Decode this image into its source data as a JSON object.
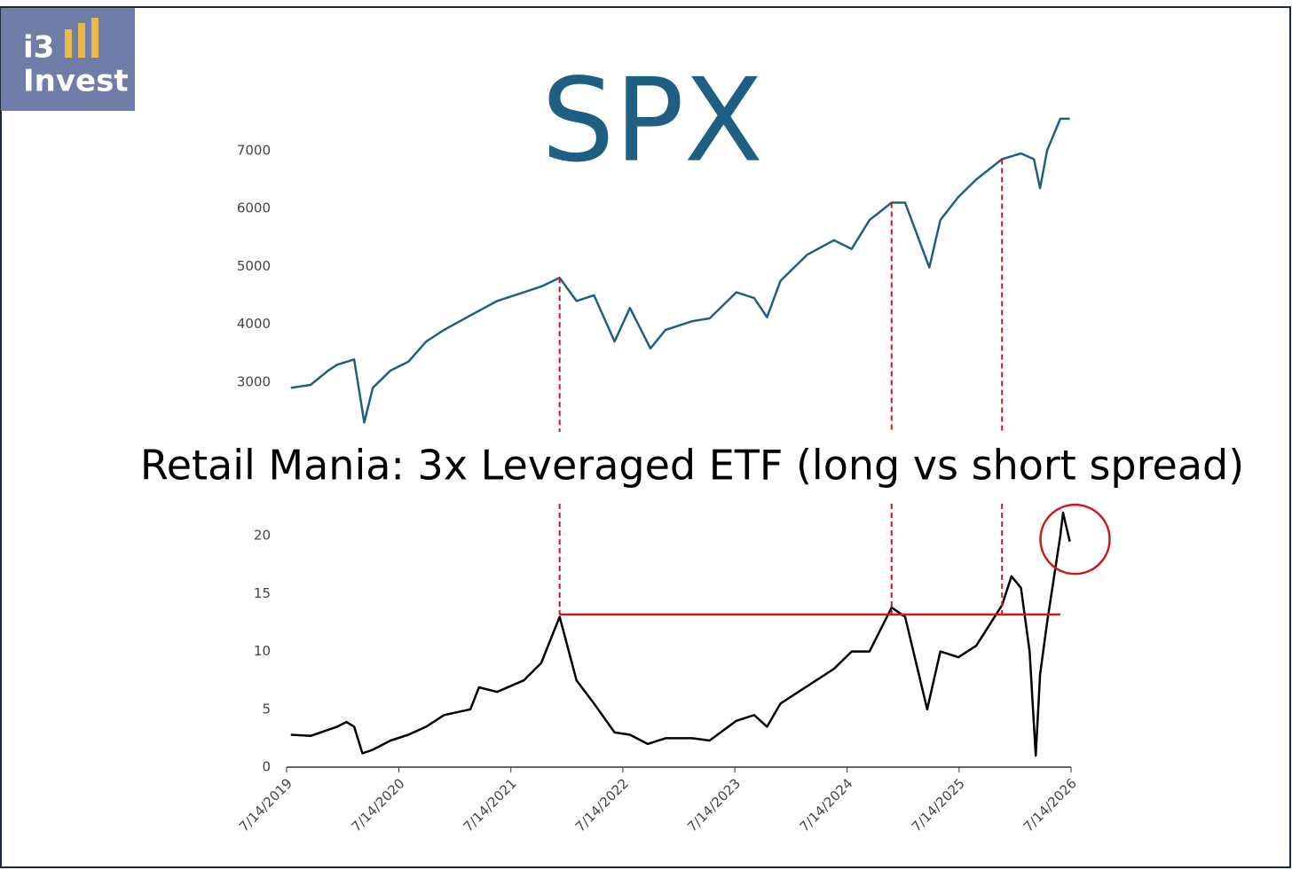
{
  "logo": {
    "line1": "i3",
    "line2": "Invest"
  },
  "chart_data": [
    {
      "type": "line",
      "title": "SPX",
      "color": "#1f5f82",
      "xlim": [
        "2019-07-14",
        "2026-07-14"
      ],
      "ylim": [
        2000,
        8000
      ],
      "yticks": [
        3000,
        4000,
        5000,
        6000,
        7000
      ],
      "x": [
        "2019-07-28",
        "2019-09-30",
        "2019-11-27",
        "2019-12-26",
        "2020-02-19",
        "2020-03-23",
        "2020-04-20",
        "2020-06-17",
        "2020-08-14",
        "2020-10-11",
        "2020-12-08",
        "2021-03-04",
        "2021-05-30",
        "2021-08-25",
        "2021-10-21",
        "2021-12-20",
        "2022-02-13",
        "2022-04-11",
        "2022-06-17",
        "2022-08-06",
        "2022-10-12",
        "2022-11-30",
        "2023-02-25",
        "2023-04-23",
        "2023-07-19",
        "2023-09-15",
        "2023-10-27",
        "2023-12-10",
        "2024-03-06",
        "2024-06-01",
        "2024-07-29",
        "2024-09-25",
        "2024-12-06",
        "2025-01-19",
        "2025-04-08",
        "2025-05-14",
        "2025-07-12",
        "2025-09-08",
        "2025-12-01",
        "2026-02-01",
        "2026-03-15",
        "2026-04-04",
        "2026-04-27",
        "2026-06-09",
        "2026-07-10"
      ],
      "values": [
        2900,
        2950,
        3200,
        3300,
        3390,
        2300,
        2900,
        3200,
        3350,
        3700,
        3900,
        4150,
        4400,
        4550,
        4650,
        4800,
        4400,
        4500,
        3700,
        4280,
        3580,
        3900,
        4050,
        4100,
        4550,
        4450,
        4120,
        4750,
        5200,
        5450,
        5300,
        5800,
        6100,
        6100,
        4980,
        5800,
        6200,
        6500,
        6850,
        6950,
        6850,
        6350,
        7000,
        7550,
        7550
      ]
    },
    {
      "type": "line",
      "title": "Retail Mania: 3x Leveraged ETF (long vs short spread)",
      "color": "#000000",
      "xlim": [
        "2019-07-14",
        "2026-07-14"
      ],
      "xticks": [
        {
          "value": "2019-07-14",
          "label": "7/14/2019"
        },
        {
          "value": "2020-07-14",
          "label": "7/14/2020"
        },
        {
          "value": "2021-07-14",
          "label": "7/14/2021"
        },
        {
          "value": "2022-07-14",
          "label": "7/14/2022"
        },
        {
          "value": "2023-07-14",
          "label": "7/14/2023"
        },
        {
          "value": "2024-07-14",
          "label": "7/14/2024"
        },
        {
          "value": "2025-07-14",
          "label": "7/14/2025"
        },
        {
          "value": "2026-07-14",
          "label": "7/14/2026"
        }
      ],
      "ylim": [
        0,
        25
      ],
      "yticks": [
        0,
        5,
        10,
        15,
        20
      ],
      "x": [
        "2019-07-28",
        "2019-09-30",
        "2019-12-26",
        "2020-01-25",
        "2020-02-19",
        "2020-03-17",
        "2020-04-20",
        "2020-06-17",
        "2020-08-14",
        "2020-10-11",
        "2020-12-08",
        "2021-03-04",
        "2021-04-01",
        "2021-05-30",
        "2021-08-25",
        "2021-10-21",
        "2021-12-20",
        "2022-02-13",
        "2022-04-11",
        "2022-06-17",
        "2022-08-06",
        "2022-10-03",
        "2022-11-30",
        "2023-02-25",
        "2023-04-23",
        "2023-07-19",
        "2023-09-15",
        "2023-10-27",
        "2023-12-10",
        "2024-03-06",
        "2024-06-01",
        "2024-07-29",
        "2024-09-25",
        "2024-12-06",
        "2025-01-19",
        "2025-04-01",
        "2025-05-14",
        "2025-07-12",
        "2025-09-08",
        "2025-12-01",
        "2026-01-01",
        "2026-02-01",
        "2026-03-01",
        "2026-03-21",
        "2026-04-04",
        "2026-04-27",
        "2026-06-09",
        "2026-06-18",
        "2026-07-10"
      ],
      "values": [
        2.8,
        2.7,
        3.5,
        3.9,
        3.5,
        1.2,
        1.5,
        2.3,
        2.8,
        3.5,
        4.5,
        5.0,
        6.9,
        6.5,
        7.5,
        9.0,
        13.0,
        7.5,
        5.5,
        3.0,
        2.8,
        2.0,
        2.5,
        2.5,
        2.3,
        4.0,
        4.5,
        3.5,
        5.5,
        7.0,
        8.5,
        10.0,
        10.0,
        13.8,
        13.0,
        5.0,
        10.0,
        9.5,
        10.5,
        14.0,
        16.5,
        15.5,
        10.0,
        1.0,
        8.0,
        12.5,
        20.0,
        22.0,
        19.5
      ]
    }
  ],
  "annotations": {
    "vlines": [
      "2021-12-20",
      "2024-12-06",
      "2025-12-01"
    ],
    "hline": {
      "value": 13.2,
      "from": "2021-12-20",
      "to": "2026-06-09"
    },
    "circle": {
      "x": "2026-07-27",
      "y": 19.7
    }
  }
}
